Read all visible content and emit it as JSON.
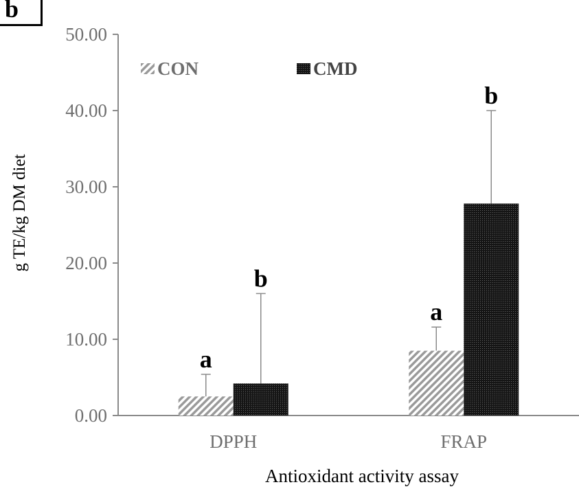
{
  "panel_label": "b",
  "chart_data": {
    "type": "bar",
    "categories": [
      "DPPH",
      "FRAP"
    ],
    "series": [
      {
        "name": "CON",
        "values": [
          2.5,
          8.5
        ],
        "error_upper": [
          5.4,
          11.6
        ],
        "significance": [
          "a",
          "a"
        ],
        "pattern": "diagonal-hatch",
        "color": "#888888"
      },
      {
        "name": "CMD",
        "values": [
          4.2,
          27.8
        ],
        "error_upper": [
          16.0,
          40.0
        ],
        "significance": [
          "b",
          "b"
        ],
        "pattern": "dense-dots",
        "color": "#1a1a1a"
      }
    ],
    "ylim": [
      0,
      50
    ],
    "yticks": [
      "0.00",
      "10.00",
      "20.00",
      "30.00",
      "40.00",
      "50.00"
    ],
    "ylabel": "g TE/kg DM diet",
    "xlabel": "Antioxidant activity assay",
    "legend_position": "top-left",
    "grid": false
  }
}
